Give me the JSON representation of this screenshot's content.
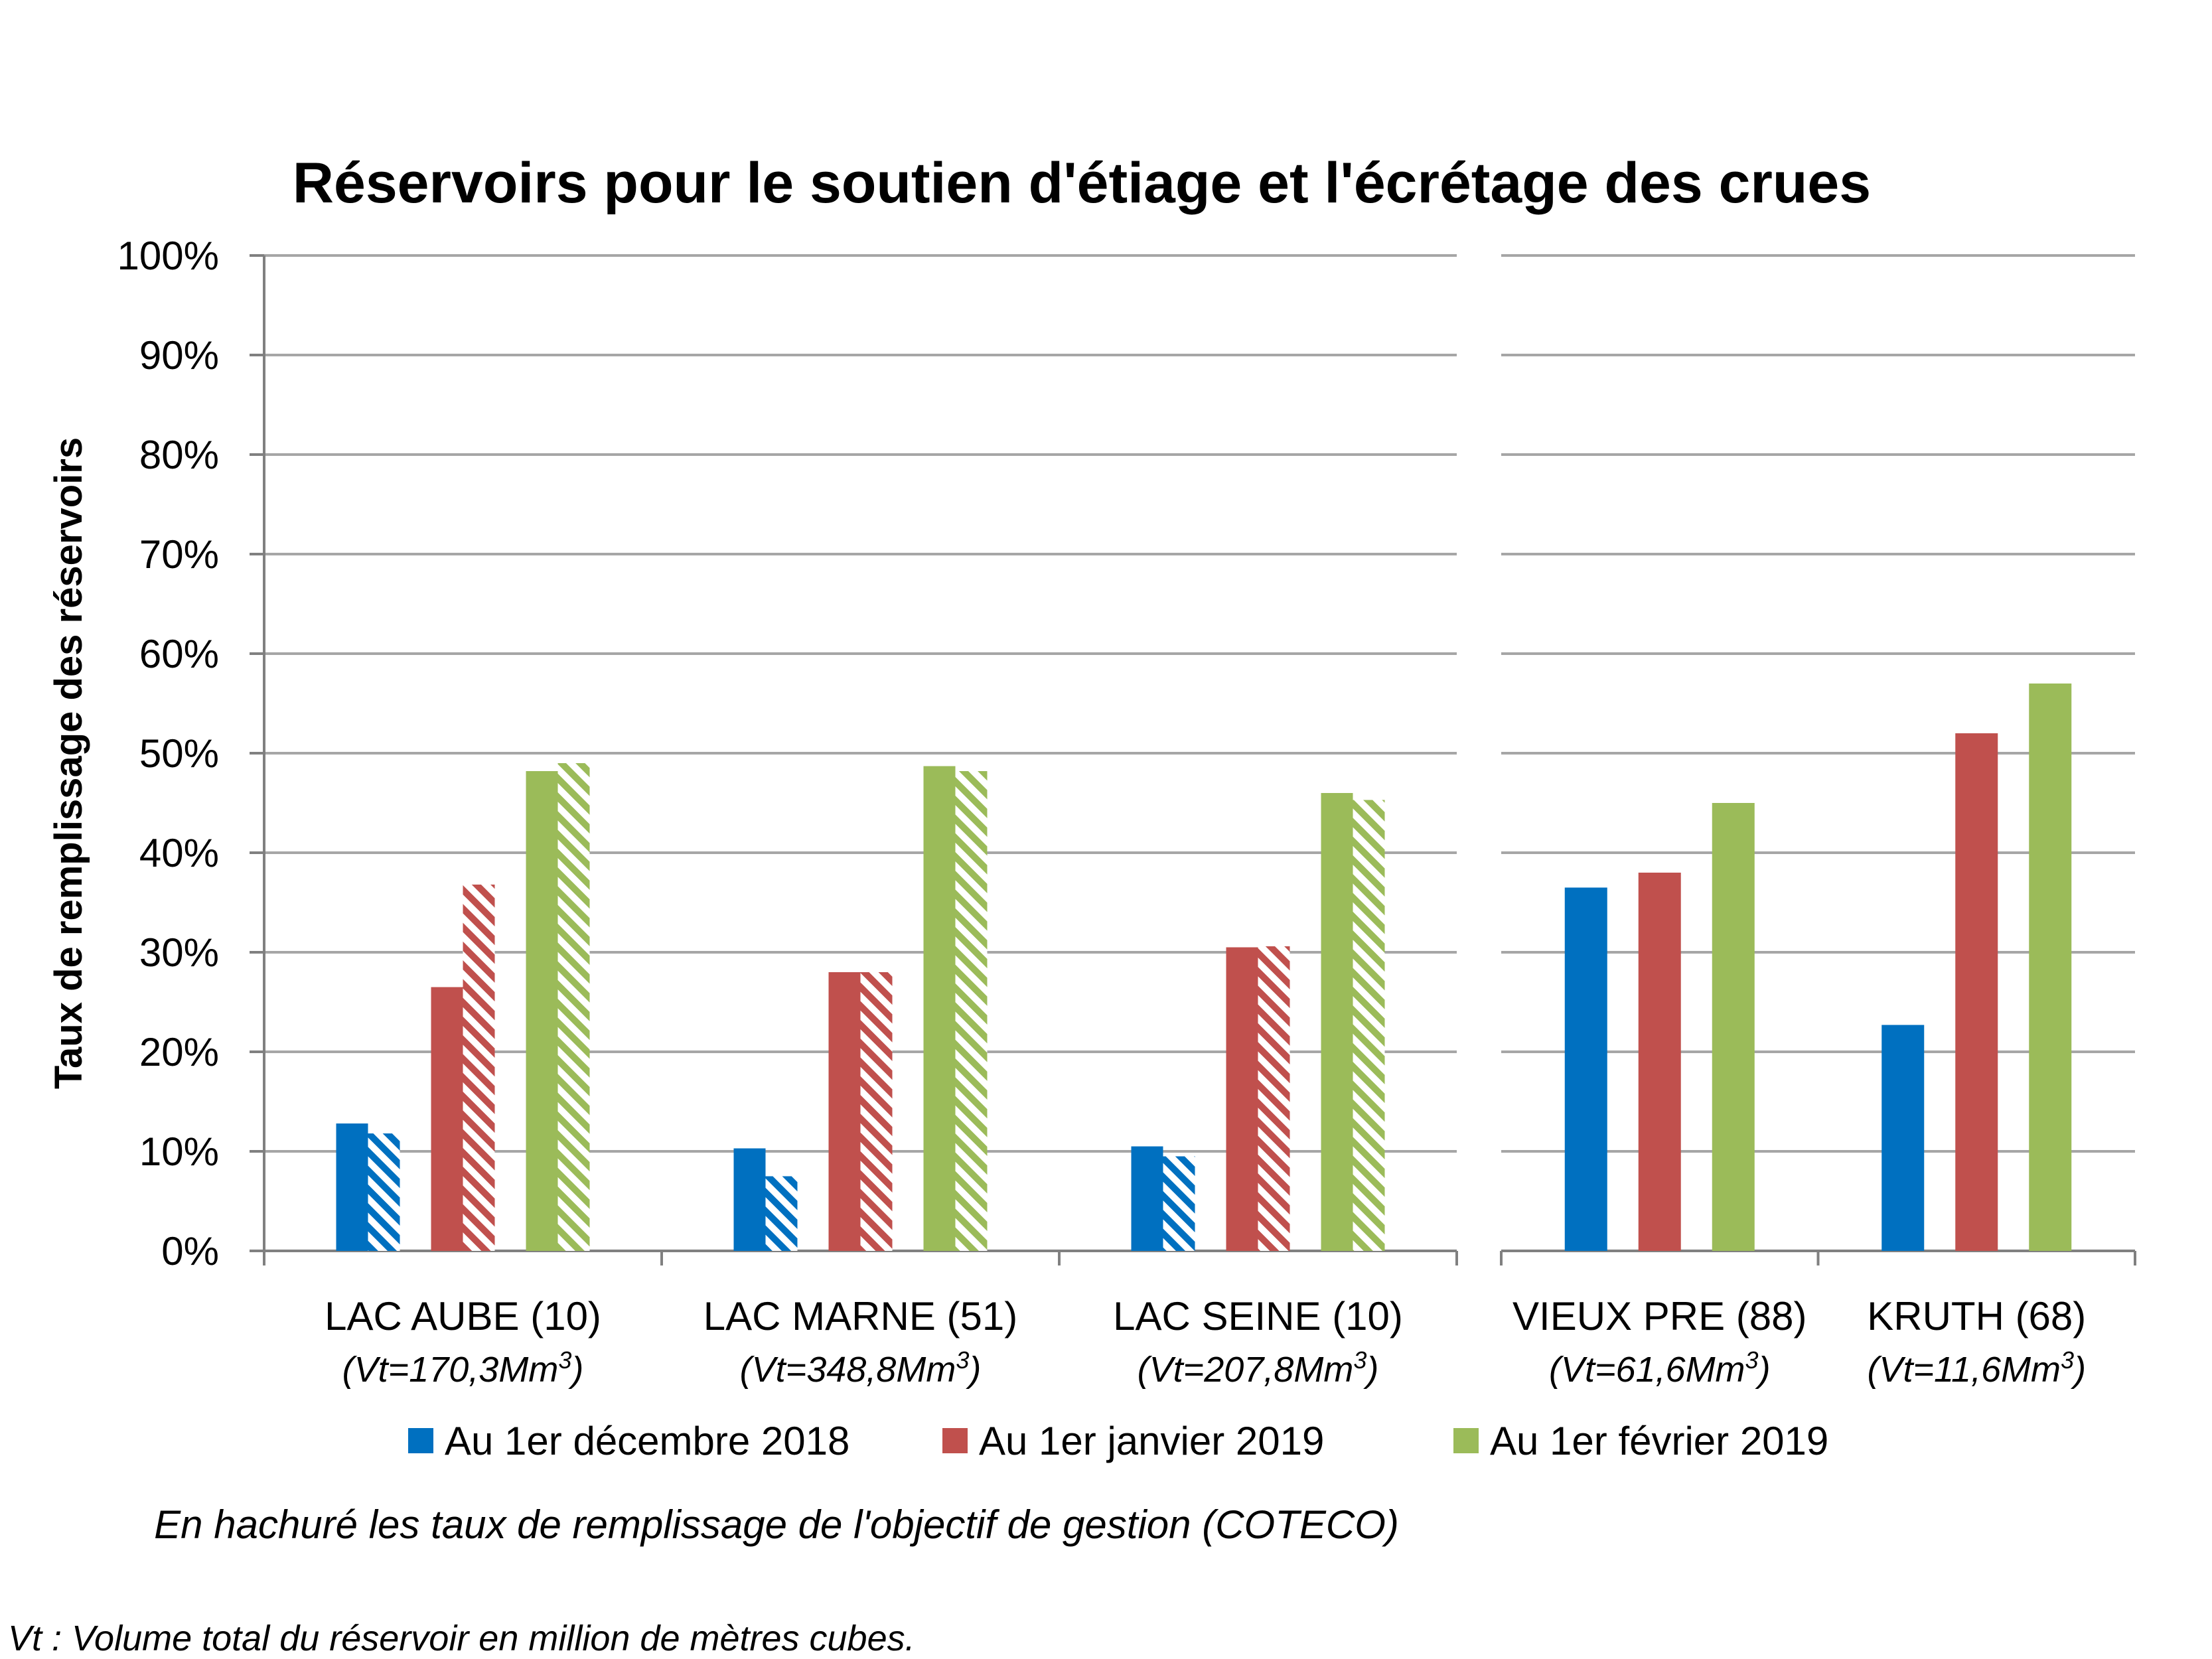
{
  "chart_data": {
    "type": "bar",
    "title": "Réservoirs pour le soutien d'étiage et l'écrétage des crues",
    "ylabel": "Taux de remplissage des réservoirs",
    "xlabel": "",
    "ylim": [
      0,
      100
    ],
    "yticks": [
      "0%",
      "10%",
      "20%",
      "30%",
      "40%",
      "50%",
      "60%",
      "70%",
      "80%",
      "90%",
      "100%"
    ],
    "grid": true,
    "legend_position": "bottom",
    "colors": {
      "dec": "#0070c0",
      "jan": "#c0504d",
      "feb": "#9bbb59",
      "grid": "#a6a6a6",
      "axis": "#808080"
    },
    "categories": [
      {
        "label": "LAC AUBE (10)",
        "vt": "(Vt=170,3Mm",
        "panel": 1
      },
      {
        "label": "LAC MARNE (51)",
        "vt": "(Vt=348,8Mm",
        "panel": 1
      },
      {
        "label": "LAC SEINE (10)",
        "vt": "(Vt=207,8Mm",
        "panel": 1
      },
      {
        "label": "VIEUX PRE (88)",
        "vt": "(Vt=61,6Mm",
        "panel": 2
      },
      {
        "label": "KRUTH (68)",
        "vt": "(Vt=11,6Mm",
        "panel": 2
      }
    ],
    "vt_superscript": "3",
    "vt_close": ")",
    "series": [
      {
        "name": "Au 1er décembre 2018",
        "color_key": "dec",
        "values": [
          12.8,
          10.3,
          10.5,
          36.5,
          22.7
        ],
        "objective": [
          11.8,
          7.5,
          9.5,
          null,
          null
        ]
      },
      {
        "name": "Au 1er janvier 2019",
        "color_key": "jan",
        "values": [
          26.5,
          28.0,
          30.5,
          38.0,
          52.0
        ],
        "objective": [
          36.8,
          28.0,
          30.6,
          null,
          null
        ]
      },
      {
        "name": "Au 1er février 2019",
        "color_key": "feb",
        "values": [
          48.2,
          48.7,
          46.0,
          45.0,
          57.0
        ],
        "objective": [
          49.0,
          48.2,
          45.3,
          null,
          null
        ]
      }
    ],
    "note": "En hachuré les taux de remplissage de l'objectif de gestion (COTECO)",
    "footnote": "Vt : Volume total du réservoir en million de mètres cubes."
  }
}
